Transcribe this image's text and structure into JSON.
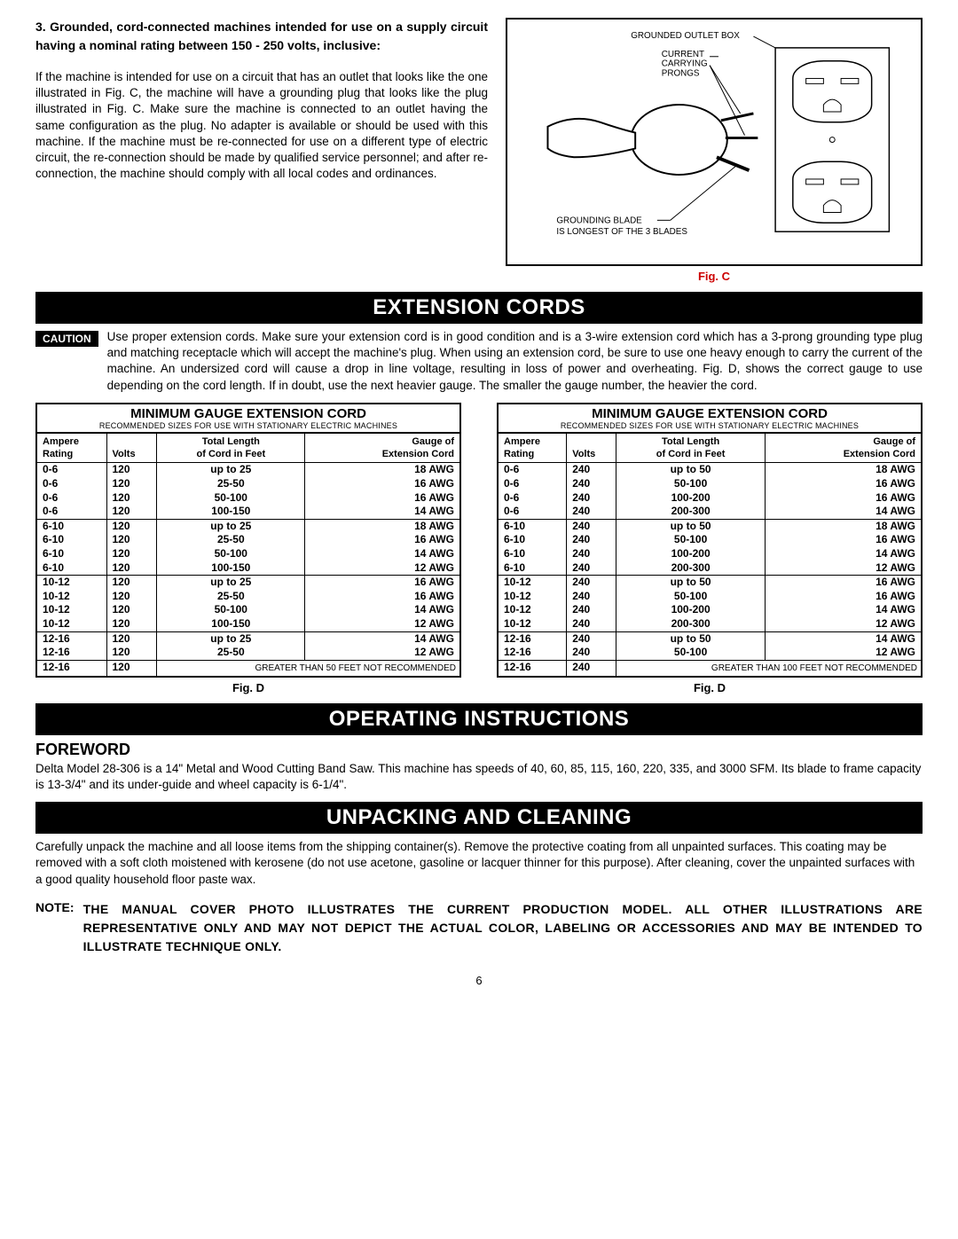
{
  "page_number": "6",
  "section3": {
    "title": "3. Grounded, cord-connected machines intended for use on a supply circuit having a nominal rating between 150 - 250 volts, inclusive:",
    "body": "If the machine is intended for use on a circuit that has an outlet that looks like the one illustrated in Fig. C, the machine will have a grounding plug that looks like the plug illustrated in Fig. C. Make sure the machine is connected to an outlet having the same configuration as the plug. No adapter is available or should be used with this machine. If the machine must be re-connected for use on a different type of electric circuit, the re-connection should be made by qualified service personnel; and after re-connection, the machine should comply with all local codes and ordinances."
  },
  "figC": {
    "caption": "Fig. C",
    "label_outlet": "GROUNDED OUTLET BOX",
    "label_prongs1": "CURRENT",
    "label_prongs2": "CARRYING",
    "label_prongs3": "PRONGS",
    "label_blade1": "GROUNDING BLADE",
    "label_blade2": "IS LONGEST OF THE 3 BLADES"
  },
  "extension": {
    "heading": "EXTENSION CORDS",
    "caution_label": "CAUTION",
    "caution_text": "Use proper extension cords. Make sure your extension cord is in good condition and is a 3-wire extension cord which has a 3-prong grounding type plug and matching receptacle which will accept the machine's plug. When using an extension cord, be sure to use one heavy enough to carry the current of the machine. An undersized cord will cause a drop in line voltage, resulting in loss of power and overheating. Fig. D, shows the correct gauge to use depending on the cord length. If in doubt, use the next heavier gauge. The smaller the gauge number, the heavier the cord.",
    "table_title": "MINIMUM GAUGE EXTENSION CORD",
    "table_subtitle": "RECOMMENDED SIZES FOR USE WITH STATIONARY ELECTRIC MACHINES",
    "col_headers": {
      "ampere1": "Ampere",
      "ampere2": "Rating",
      "volts": "Volts",
      "len1": "Total Length",
      "len2": "of Cord in Feet",
      "gauge1": "Gauge of",
      "gauge2": "Extension Cord"
    },
    "table120_rows": [
      {
        "a": "0-6",
        "v": "120",
        "l": "up to 25",
        "g": "18 AWG",
        "group_end": false
      },
      {
        "a": "0-6",
        "v": "120",
        "l": "25-50",
        "g": "16 AWG",
        "group_end": false
      },
      {
        "a": "0-6",
        "v": "120",
        "l": "50-100",
        "g": "16 AWG",
        "group_end": false
      },
      {
        "a": "0-6",
        "v": "120",
        "l": "100-150",
        "g": "14 AWG",
        "group_end": true
      },
      {
        "a": "6-10",
        "v": "120",
        "l": "up to 25",
        "g": "18 AWG",
        "group_end": false
      },
      {
        "a": "6-10",
        "v": "120",
        "l": "25-50",
        "g": "16 AWG",
        "group_end": false
      },
      {
        "a": "6-10",
        "v": "120",
        "l": "50-100",
        "g": "14 AWG",
        "group_end": false
      },
      {
        "a": "6-10",
        "v": "120",
        "l": "100-150",
        "g": "12 AWG",
        "group_end": true
      },
      {
        "a": "10-12",
        "v": "120",
        "l": "up to 25",
        "g": "16 AWG",
        "group_end": false
      },
      {
        "a": "10-12",
        "v": "120",
        "l": "25-50",
        "g": "16 AWG",
        "group_end": false
      },
      {
        "a": "10-12",
        "v": "120",
        "l": "50-100",
        "g": "14 AWG",
        "group_end": false
      },
      {
        "a": "10-12",
        "v": "120",
        "l": "100-150",
        "g": "12 AWG",
        "group_end": true
      },
      {
        "a": "12-16",
        "v": "120",
        "l": "up to 25",
        "g": "14 AWG",
        "group_end": false
      },
      {
        "a": "12-16",
        "v": "120",
        "l": "25-50",
        "g": "12 AWG",
        "group_end": true
      }
    ],
    "table120_footer_a": "12-16",
    "table120_footer_v": "120",
    "table120_footer_note": "GREATER THAN 50 FEET NOT RECOMMENDED",
    "table240_rows": [
      {
        "a": "0-6",
        "v": "240",
        "l": "up to 50",
        "g": "18 AWG",
        "group_end": false
      },
      {
        "a": "0-6",
        "v": "240",
        "l": "50-100",
        "g": "16 AWG",
        "group_end": false
      },
      {
        "a": "0-6",
        "v": "240",
        "l": "100-200",
        "g": "16 AWG",
        "group_end": false
      },
      {
        "a": "0-6",
        "v": "240",
        "l": "200-300",
        "g": "14 AWG",
        "group_end": true
      },
      {
        "a": "6-10",
        "v": "240",
        "l": "up to 50",
        "g": "18 AWG",
        "group_end": false
      },
      {
        "a": "6-10",
        "v": "240",
        "l": "50-100",
        "g": "16 AWG",
        "group_end": false
      },
      {
        "a": "6-10",
        "v": "240",
        "l": "100-200",
        "g": "14 AWG",
        "group_end": false
      },
      {
        "a": "6-10",
        "v": "240",
        "l": "200-300",
        "g": "12 AWG",
        "group_end": true
      },
      {
        "a": "10-12",
        "v": "240",
        "l": "up to 50",
        "g": "16 AWG",
        "group_end": false
      },
      {
        "a": "10-12",
        "v": "240",
        "l": "50-100",
        "g": "16 AWG",
        "group_end": false
      },
      {
        "a": "10-12",
        "v": "240",
        "l": "100-200",
        "g": "14 AWG",
        "group_end": false
      },
      {
        "a": "10-12",
        "v": "240",
        "l": "200-300",
        "g": "12 AWG",
        "group_end": true
      },
      {
        "a": "12-16",
        "v": "240",
        "l": "up to 50",
        "g": "14 AWG",
        "group_end": false
      },
      {
        "a": "12-16",
        "v": "240",
        "l": "50-100",
        "g": "12 AWG",
        "group_end": true
      }
    ],
    "table240_footer_a": "12-16",
    "table240_footer_v": "240",
    "table240_footer_note": "GREATER THAN 100 FEET NOT RECOMMENDED",
    "figD_caption": "Fig. D"
  },
  "operating": {
    "heading": "OPERATING INSTRUCTIONS",
    "foreword_title": "FOREWORD",
    "foreword_text": "Delta Model 28-306 is a 14\" Metal and Wood Cutting Band Saw. This machine has speeds of 40, 60, 85, 115, 160, 220, 335, and 3000 SFM. Its blade to frame capacity is 13-3/4\" and its under-guide and wheel capacity is 6-1/4\"."
  },
  "unpacking": {
    "heading": "UNPACKING AND CLEANING",
    "text": "Carefully unpack the machine and all loose items from the shipping container(s). Remove the protective coating from  all unpainted surfaces. This coating may be removed with a soft cloth moistened with kerosene (do not use acetone, gasoline or lacquer thinner for this purpose). After cleaning, cover the unpainted surfaces with a good quality household floor paste wax.",
    "note_label": "NOTE:",
    "note_text": "THE MANUAL COVER PHOTO ILLUSTRATES THE CURRENT PRODUCTION MODEL. ALL OTHER ILLUSTRATIONS ARE REPRESENTATIVE ONLY AND MAY NOT DEPICT THE ACTUAL COLOR, LABELING OR ACCESSORIES AND MAY BE INTENDED TO ILLUSTRATE TECHNIQUE ONLY."
  },
  "colors": {
    "accent": "#c00000",
    "black": "#000000"
  }
}
